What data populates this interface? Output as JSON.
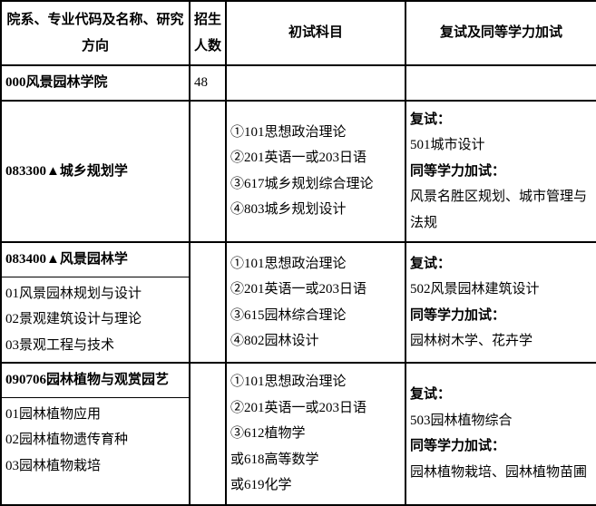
{
  "header": {
    "c1": "院系、专业代码及名称、研究方向",
    "c2": "招生人数",
    "c3": "初试科目",
    "c4": "复试及同等学力加试"
  },
  "row_dept": {
    "name": "000风景园林学院",
    "count": "48"
  },
  "row1": {
    "name": "083300▲城乡规划学",
    "exam1": "①101思想政治理论",
    "exam2": "②201英语一或203日语",
    "exam3": "③617城乡规划综合理论",
    "exam4": "④803城乡规划设计",
    "r_t1": "复试：",
    "r_v1": "501城市设计",
    "r_t2": "同等学力加试：",
    "r_v2": "风景名胜区规划、城市管理与法规"
  },
  "row2": {
    "head": "083400▲风景园林学",
    "d1": "01风景园林规划与设计",
    "d2": "02景观建筑设计与理论",
    "d3": "03景观工程与技术",
    "exam1": "①101思想政治理论",
    "exam2": "②201英语一或203日语",
    "exam3": "③615园林综合理论",
    "exam4": "④802园林设计",
    "r_t1": "复试：",
    "r_v1": "502风景园林建筑设计",
    "r_t2": "同等学力加试：",
    "r_v2": "园林树木学、花卉学"
  },
  "row3": {
    "head": "090706园林植物与观赏园艺",
    "d1": "01园林植物应用",
    "d2": "02园林植物遗传育种",
    "d3": "03园林植物栽培",
    "exam1": "①101思想政治理论",
    "exam2": "②201英语一或203日语",
    "exam3": "③612植物学",
    "exam4": "或618高等数学",
    "exam5": "或619化学",
    "r_t1": "复试：",
    "r_v1": "503园林植物综合",
    "r_t2": "同等学力加试：",
    "r_v2": "园林植物栽培、园林植物苗圃"
  }
}
